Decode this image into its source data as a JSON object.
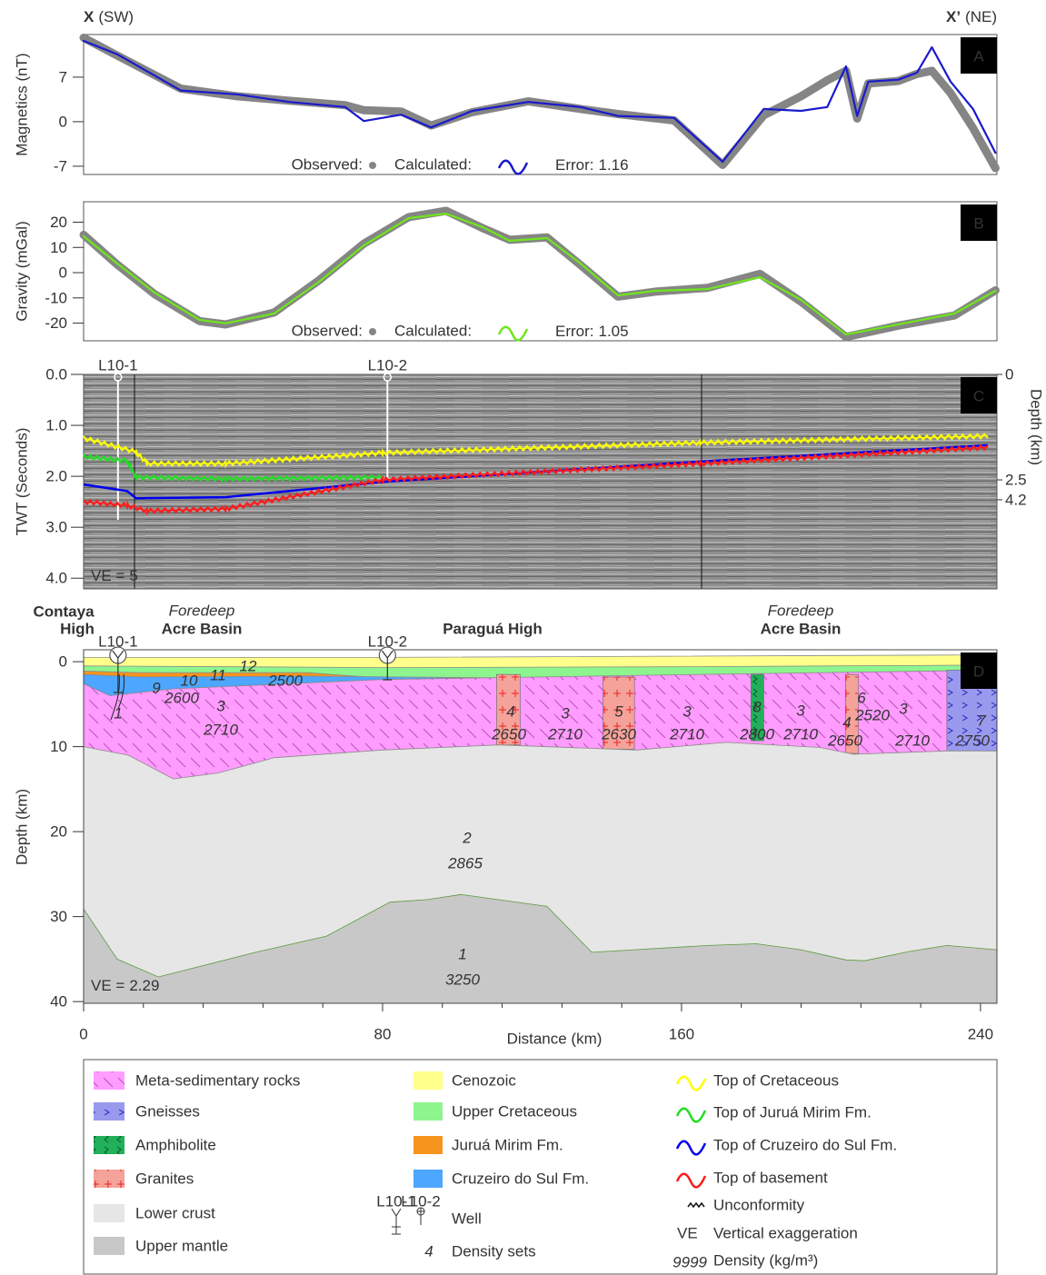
{
  "header": {
    "left": {
      "mark": "X",
      "dir": "(SW)"
    },
    "right": {
      "mark": "X’",
      "dir": "(NE)"
    }
  },
  "chart_data": [
    {
      "type": "line",
      "panel": "A",
      "ylabel": "Magnetics (nT)",
      "xlim": [
        0,
        244.4
      ],
      "ylim": [
        -8.3,
        13.7
      ],
      "yticks": [
        -7,
        0,
        7
      ],
      "x": [
        0,
        9,
        26,
        41,
        55,
        70,
        75,
        85,
        93,
        104,
        119,
        133,
        143,
        158,
        171,
        182,
        192,
        199,
        204,
        207,
        210,
        218,
        223,
        227,
        232,
        238,
        244
      ],
      "series": [
        {
          "name": "Observed:",
          "color": "#858585",
          "style": "band",
          "values": [
            13.2,
            10.4,
            5.2,
            4.0,
            3.3,
            2.6,
            1.8,
            1.6,
            -0.6,
            1.5,
            3.2,
            2.0,
            1.2,
            0.2,
            -6.8,
            1.0,
            4.0,
            6.5,
            8.0,
            0.5,
            6.0,
            6.4,
            7.5,
            8.0,
            4.5,
            -1.0,
            -7.3
          ]
        },
        {
          "name": "Calculated:",
          "color": "#1a1acc",
          "style": "line",
          "values": [
            12.7,
            10.6,
            4.9,
            4.3,
            3.1,
            2.3,
            0.1,
            1.1,
            -0.9,
            1.7,
            3.1,
            2.3,
            0.9,
            0.6,
            -6.3,
            2.0,
            1.7,
            2.3,
            8.7,
            0.9,
            6.3,
            6.6,
            7.7,
            11.7,
            6.3,
            2.0,
            -4.9
          ]
        }
      ],
      "error_label": "Error:",
      "error": 1.16
    },
    {
      "type": "line",
      "panel": "B",
      "ylabel": "Gravity (mGal)",
      "xlim": [
        0,
        244.4
      ],
      "ylim": [
        -27,
        28.1
      ],
      "yticks": [
        -20,
        -10,
        0,
        10,
        20
      ],
      "x": [
        0,
        9,
        19,
        31,
        38,
        51,
        63,
        75,
        87,
        97,
        107,
        114,
        124,
        133,
        143,
        153,
        167,
        181,
        192,
        204,
        218,
        233,
        244
      ],
      "series": [
        {
          "name": "Observed:",
          "color": "#858585",
          "style": "band",
          "values": [
            15.0,
            3.2,
            -8.5,
            -19.2,
            -20.5,
            -15.8,
            -3.0,
            11.5,
            22.0,
            24.5,
            17.5,
            13.0,
            14.0,
            3.0,
            -9.5,
            -7.5,
            -6.0,
            -0.5,
            -11.5,
            -25.5,
            -21.0,
            -17.0,
            -7.0
          ]
        },
        {
          "name": "Calculated:",
          "color": "#6fe61c",
          "style": "line",
          "values": [
            14.4,
            3.6,
            -7.9,
            -18.7,
            -20.1,
            -16.2,
            -3.6,
            10.8,
            21.6,
            23.4,
            17.9,
            12.6,
            13.7,
            3.6,
            -9.0,
            -7.2,
            -6.5,
            -1.8,
            -10.8,
            -24.5,
            -20.5,
            -16.2,
            -7.2
          ]
        }
      ],
      "error_label": "Error:",
      "error": 1.05
    },
    {
      "type": "seismic",
      "panel": "C",
      "ylabel": "TWT (Seconds)",
      "y2label": "Depth (km)",
      "xlim": [
        0,
        244.4
      ],
      "ylim": [
        4.21,
        0
      ],
      "yticks": [
        {
          "value": 0,
          "label": "0.0"
        },
        {
          "value": 1,
          "label": "1.0"
        },
        {
          "value": 2,
          "label": "2.0"
        },
        {
          "value": 3,
          "label": "3.0"
        },
        {
          "value": 4,
          "label": "4.0"
        }
      ],
      "depth_ticks": [
        {
          "twt": 0,
          "depth": 0
        },
        {
          "twt": 2.07,
          "depth": 2.5
        },
        {
          "twt": 2.46,
          "depth": 4.2
        }
      ],
      "wells": [
        {
          "name": "L10-1",
          "x": 9.2
        },
        {
          "name": "L10-2",
          "x": 81.3
        }
      ],
      "horizons": [
        {
          "name": "Top of Cretaceous",
          "color": "#ffff00",
          "style": "wavy",
          "x": [
            0,
            14,
            17,
            38,
            80,
            165,
            242
          ],
          "values": [
            1.25,
            1.52,
            1.75,
            1.75,
            1.54,
            1.34,
            1.21
          ]
        },
        {
          "name": "Top of Juruá Mirim Fm.",
          "color": "#22dd22",
          "style": "wavy",
          "x": [
            0,
            11.7,
            14,
            38,
            80
          ],
          "values": [
            1.61,
            1.7,
            2.02,
            2.05,
            2.02
          ]
        },
        {
          "name": "Top of Cruzeiro do Sul Fm.",
          "color": "#0000ee",
          "style": "smooth",
          "x": [
            0,
            11.7,
            14,
            38,
            80,
            165,
            242
          ],
          "values": [
            2.16,
            2.29,
            2.43,
            2.41,
            2.11,
            1.71,
            1.39
          ]
        },
        {
          "name": "Top of basement",
          "color": "#ff1a1a",
          "style": "wavy",
          "x": [
            0,
            11.7,
            17,
            38,
            80,
            165,
            242
          ],
          "values": [
            2.5,
            2.57,
            2.68,
            2.64,
            2.07,
            1.75,
            1.43
          ]
        }
      ],
      "ve_label": "VE =",
      "ve": 5
    },
    {
      "type": "cross-section",
      "panel": "D",
      "xlabel": "Distance (km)",
      "ylabel": "Depth (km)",
      "xlim": [
        0,
        244.4
      ],
      "ylim": [
        40.2,
        -1.4
      ],
      "xticks": [
        0,
        80,
        160,
        240
      ],
      "xminor": [
        16,
        32,
        48,
        64,
        96,
        112,
        128,
        144,
        176,
        192,
        208,
        224
      ],
      "yticks": [
        0,
        10,
        20,
        30,
        40
      ],
      "regions": [
        {
          "lines": [
            "Contaya",
            "High"
          ]
        },
        {
          "note": "Foredeep",
          "lines": [
            "Acre Basin"
          ]
        },
        {
          "lines": [
            "Paraguá High"
          ]
        },
        {
          "note": "Foredeep",
          "lines": [
            "Acre Basin"
          ]
        }
      ],
      "layers": [
        {
          "name": "Cenozoic",
          "color": "#ffff8c",
          "x": [
            0,
            80,
            244.4
          ],
          "depth": [
            -0.5,
            -0.5,
            -0.8
          ]
        },
        {
          "name": "Upper Cretaceous",
          "color": "#8ef58e",
          "x": [
            0,
            80,
            160,
            244.4
          ],
          "depth": [
            0.5,
            0.7,
            0.6,
            0.4
          ]
        },
        {
          "name": "Juruá Mirim Fm.",
          "color": "#f7941d",
          "x": [
            0,
            15,
            60,
            82
          ],
          "depth": [
            1.1,
            1.3,
            1.3,
            2.0
          ]
        },
        {
          "name": "Cruzeiro do Sul Fm.",
          "color": "#4da6ff",
          "x": [
            0,
            15,
            60,
            110
          ],
          "depth": [
            1.5,
            1.8,
            1.7,
            1.9
          ]
        },
        {
          "name": "Meta-sedimentary rocks",
          "color": "#ff9cff",
          "pattern": "hatch",
          "x": [
            0,
            7,
            24,
            80,
            165,
            244.4
          ],
          "depth": [
            2.6,
            4.0,
            3.2,
            2.1,
            1.5,
            1.0
          ]
        },
        {
          "name": "Lower crust",
          "color": "#e6e6e6",
          "x": [
            0,
            12,
            24,
            36,
            51,
            80,
            111,
            148,
            172,
            197,
            206,
            231,
            244.4
          ],
          "depth": [
            10,
            11,
            13.8,
            13.1,
            11.3,
            10.4,
            9.8,
            10.4,
            9.5,
            10.1,
            10.9,
            10.5,
            10.5
          ]
        },
        {
          "name": "Upper mantle",
          "color": "#c8c8c8",
          "x": [
            0,
            9,
            20,
            46,
            65,
            82,
            92,
            101,
            124,
            136,
            167,
            180,
            192,
            204,
            209,
            221,
            231,
            244.4
          ],
          "depth": [
            29.1,
            35,
            37.1,
            34.2,
            32.3,
            28.3,
            28,
            27.4,
            28.8,
            34.2,
            33.4,
            33.2,
            33.9,
            35.1,
            35.2,
            34.1,
            33.4,
            33.9
          ]
        }
      ],
      "bodies": [
        {
          "name": "Gneisses",
          "color": "#9999ee",
          "pattern": "chevron",
          "blocks": [
            {
              "x": [
                231,
                244.4
              ],
              "depth": [
                1.0,
                10.5
              ]
            }
          ]
        },
        {
          "name": "Amphibolite",
          "color": "#22b05a",
          "pattern": "wave",
          "blocks": [
            {
              "x": [
                178.6,
                182
              ],
              "depth": [
                1.5,
                9.3
              ]
            }
          ]
        },
        {
          "name": "Granites",
          "color": "#f4a29a",
          "pattern": "cross",
          "blocks": [
            {
              "x": [
                110.5,
                116.8
              ],
              "depth": [
                1.5,
                9.8
              ]
            },
            {
              "x": [
                139,
                147.4
              ],
              "depth": [
                1.8,
                10.3
              ]
            },
            {
              "x": [
                203.9,
                207.3
              ],
              "depth": [
                1.5,
                10.8
              ]
            }
          ]
        }
      ],
      "density_sets": [
        {
          "set": 12,
          "density": 2500
        },
        {
          "set": 11
        },
        {
          "set": 10,
          "density": 2600
        },
        {
          "set": 9
        },
        {
          "set": 1
        },
        {
          "set": 3,
          "density": 2710
        },
        {
          "set": 4,
          "density": 2650
        },
        {
          "set": 3,
          "density": 2710
        },
        {
          "set": 5,
          "density": 2630
        },
        {
          "set": 3,
          "density": 2710
        },
        {
          "set": 8,
          "density": 2800
        },
        {
          "set": 3,
          "density": 2710
        },
        {
          "set": 4,
          "density": 2650
        },
        {
          "set": 6,
          "density": 2520
        },
        {
          "set": 3,
          "density": 2710
        },
        {
          "set": 7,
          "density": 2750
        },
        {
          "set": 2,
          "density": 2865
        },
        {
          "set": 1,
          "density": 3250
        }
      ],
      "ve_label": "VE =",
      "ve": 2.29
    }
  ],
  "legend": {
    "unconformity": "Unconformity",
    "well": "Well",
    "density_set_example": 4,
    "density_sets": "Density sets",
    "ve_abbr": "VE",
    "ve": "Vertical exaggeration",
    "density_example": 9999,
    "density": "Density (kg/m³)"
  }
}
